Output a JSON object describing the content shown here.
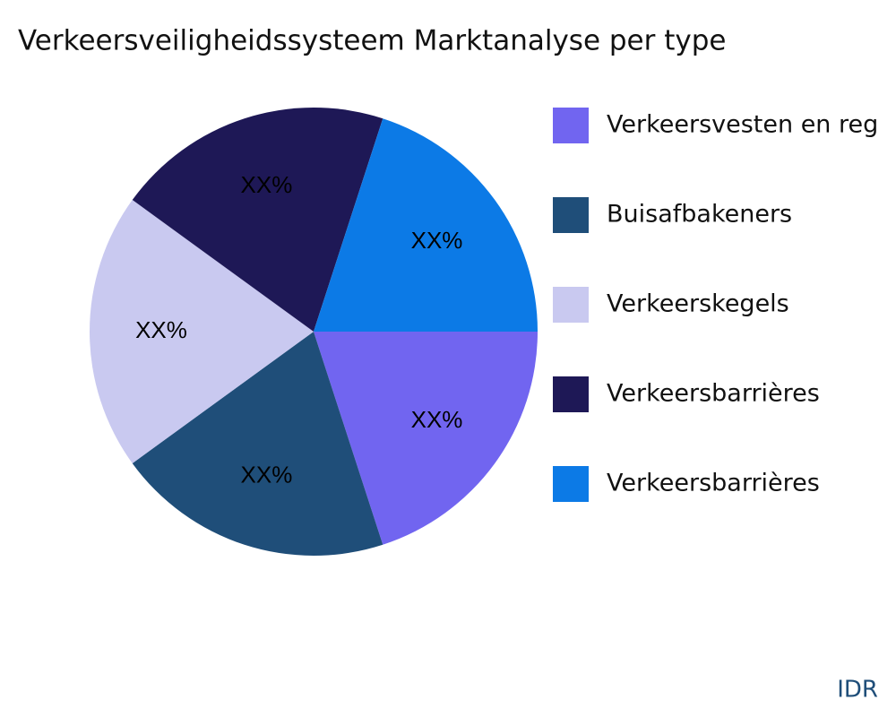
{
  "chart_data": {
    "type": "pie",
    "title": "Verkeersveiligheidssysteem Marktanalyse per type",
    "categories": [
      "Verkeersvesten en reg",
      "Buisafbakeners",
      "Verkeerskegels",
      "Verkeersbarrières",
      "Verkeersbarrières"
    ],
    "values": [
      20,
      20,
      20,
      20,
      20
    ],
    "value_labels": [
      "XX%",
      "XX%",
      "XX%",
      "XX%",
      "XX%"
    ],
    "colors": [
      "#7165f0",
      "#1f4e79",
      "#c9c9f0",
      "#1e1856",
      "#0c7ae6"
    ],
    "legend": "right",
    "source": "IDR"
  }
}
